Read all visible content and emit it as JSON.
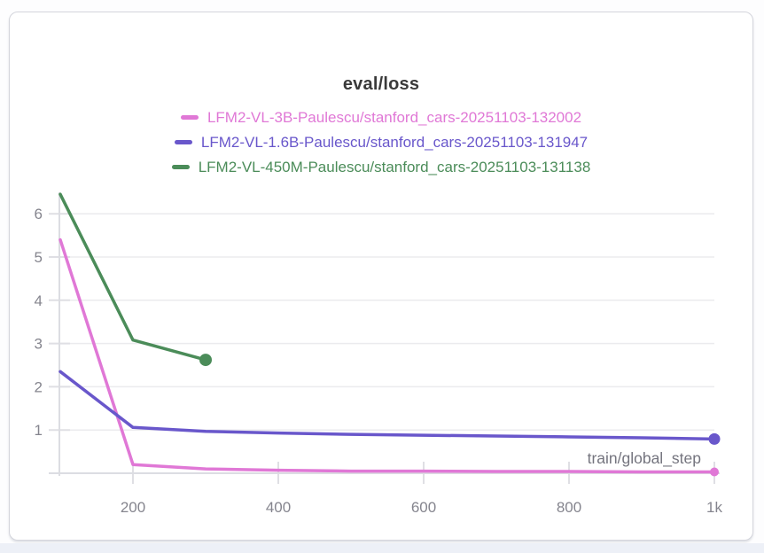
{
  "page": {
    "background": "#fdfdfe",
    "bottom_strip_color": "#edf0f7",
    "card_background": "#ffffff",
    "card_border_color": "#d4d5dc"
  },
  "chart_data": {
    "type": "line",
    "title": "eval/loss",
    "xlabel": "train/global_step",
    "ylabel": "",
    "xlim": [
      100,
      1000
    ],
    "ylim": [
      0,
      6.5
    ],
    "grid": true,
    "legend_position": "top-center",
    "axis_color": "#dcdde2",
    "gridline_color": "#ebebee",
    "tick_color": "#dfdfe4",
    "tick_label_color": "#85858e",
    "x_ticks": [
      {
        "value": 200,
        "label": "200"
      },
      {
        "value": 400,
        "label": "400"
      },
      {
        "value": 600,
        "label": "600"
      },
      {
        "value": 800,
        "label": "800"
      },
      {
        "value": 1000,
        "label": "1k"
      }
    ],
    "y_ticks": [
      {
        "value": 1,
        "label": "1"
      },
      {
        "value": 2,
        "label": "2"
      },
      {
        "value": 3,
        "label": "3"
      },
      {
        "value": 4,
        "label": "4"
      },
      {
        "value": 5,
        "label": "5"
      },
      {
        "value": 6,
        "label": "6"
      }
    ],
    "series": [
      {
        "name": "LFM2-VL-3B-Paulescu/stanford_cars-20251103-132002",
        "color": "#e078d6",
        "x": [
          100,
          200,
          300,
          400,
          500,
          600,
          700,
          800,
          900,
          1000
        ],
        "y": [
          5.4,
          0.2,
          0.1,
          0.07,
          0.05,
          0.05,
          0.04,
          0.04,
          0.03,
          0.03
        ],
        "end_marker": true
      },
      {
        "name": "LFM2-VL-1.6B-Paulescu/stanford_cars-20251103-131947",
        "color": "#6957cb",
        "x": [
          100,
          200,
          300,
          400,
          500,
          600,
          700,
          800,
          900,
          1000
        ],
        "y": [
          2.35,
          1.06,
          0.97,
          0.93,
          0.9,
          0.88,
          0.86,
          0.84,
          0.82,
          0.79
        ],
        "end_marker": true
      },
      {
        "name": "LFM2-VL-450M-Paulescu/stanford_cars-20251103-131138",
        "color": "#4b8c59",
        "x": [
          100,
          200,
          300
        ],
        "y": [
          6.45,
          3.08,
          2.62
        ],
        "end_marker": true
      }
    ]
  }
}
